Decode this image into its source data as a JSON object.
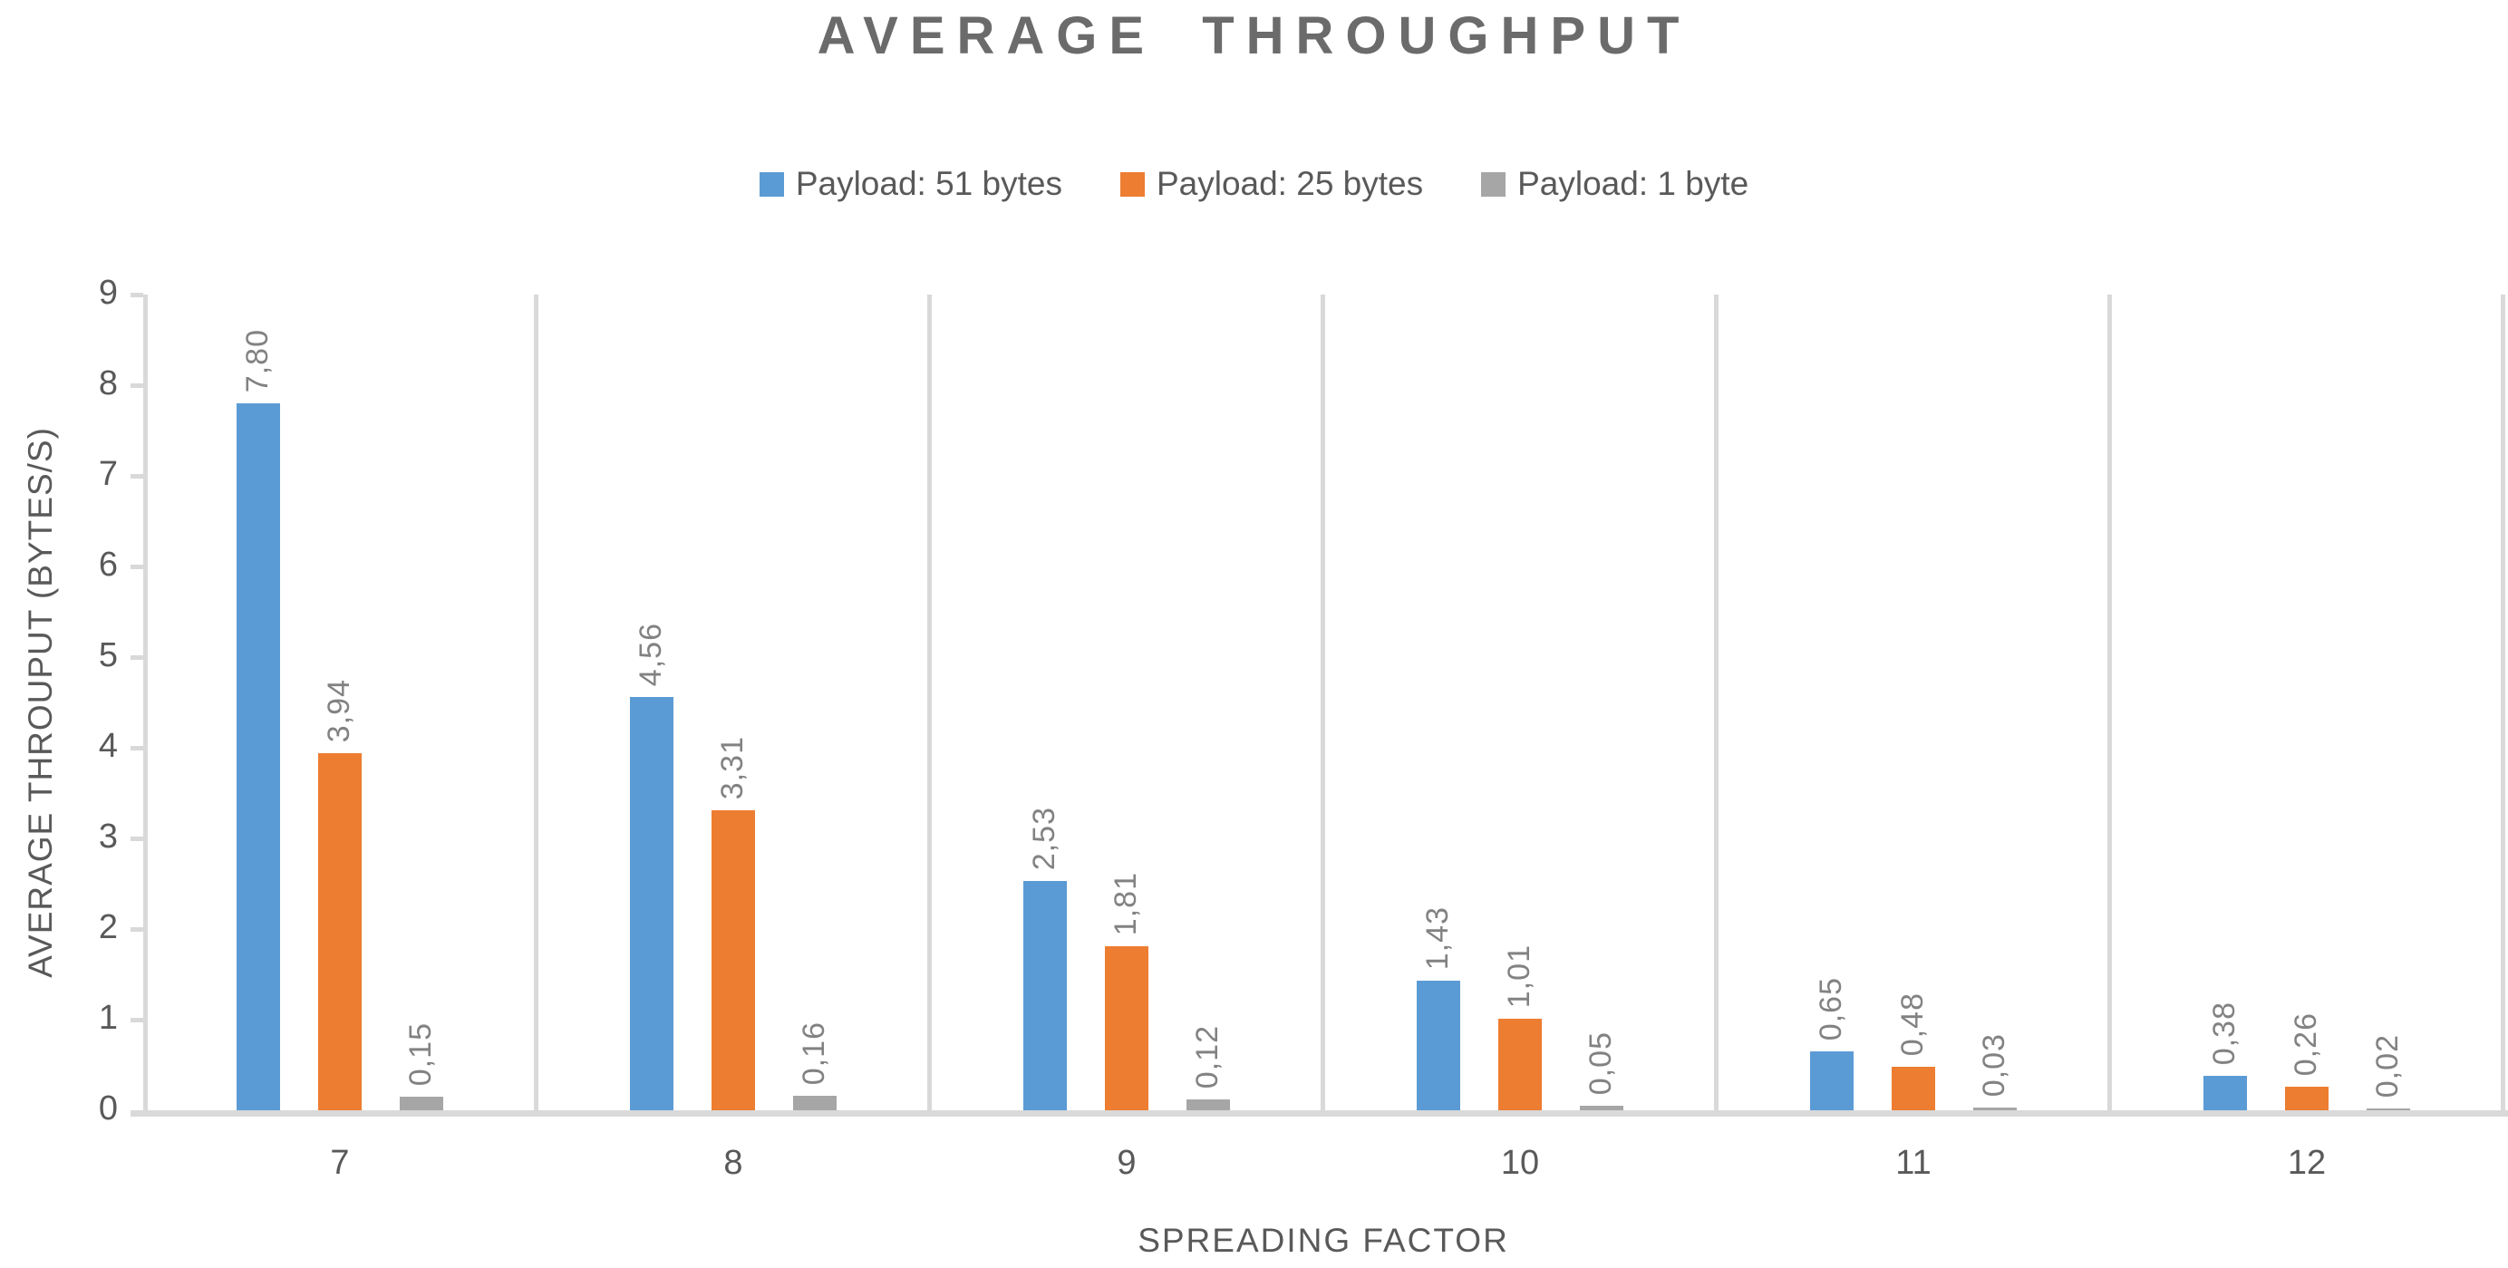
{
  "chart_data": {
    "type": "bar",
    "title": "AVERAGE THROUGHPUT",
    "xlabel": "SPREADING FACTOR",
    "ylabel": "AVERAGE THROUPUT (BYTES/S)",
    "categories": [
      "7",
      "8",
      "9",
      "10",
      "11",
      "12"
    ],
    "series": [
      {
        "name": "Payload: 51 bytes",
        "color": "#5B9BD5",
        "values": [
          7.8,
          4.56,
          2.53,
          1.43,
          0.65,
          0.38
        ],
        "labels": [
          "7,80",
          "4,56",
          "2,53",
          "1,43",
          "0,65",
          "0,38"
        ]
      },
      {
        "name": "Payload: 25 bytes",
        "color": "#ED7D31",
        "values": [
          3.94,
          3.31,
          1.81,
          1.01,
          0.48,
          0.26
        ],
        "labels": [
          "3,94",
          "3,31",
          "1,81",
          "1,01",
          "0,48",
          "0,26"
        ]
      },
      {
        "name": "Payload: 1 byte",
        "color": "#A6A6A6",
        "values": [
          0.15,
          0.16,
          0.12,
          0.05,
          0.03,
          0.02
        ],
        "labels": [
          "0,15",
          "0,16",
          "0,12",
          "0,05",
          "0,03",
          "0,02"
        ]
      }
    ],
    "ylim": [
      0,
      9
    ],
    "yticks": [
      "0",
      "1",
      "2",
      "3",
      "4",
      "5",
      "6",
      "7",
      "8",
      "9"
    ],
    "decimal_separator": ",",
    "legend_position": "top",
    "grid": "vertical-category-dividers-only",
    "colors": {
      "axis_line": "#D9D9D9",
      "axis_text": "#595959",
      "data_label_text": "#828282",
      "title_text": "#6b6b6b"
    }
  }
}
